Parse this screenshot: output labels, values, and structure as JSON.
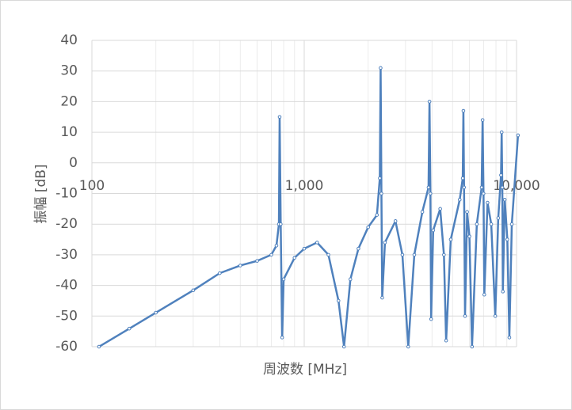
{
  "chart_data": {
    "type": "line",
    "x_label": "周波数 [MHz]",
    "y_label": "振幅 [dB]",
    "x": [
      108,
      150,
      200,
      300,
      400,
      500,
      600,
      700,
      740,
      760,
      766,
      775,
      787,
      800,
      900,
      1000,
      1150,
      1300,
      1450,
      1540,
      1650,
      1800,
      2000,
      2200,
      2270,
      2290,
      2310,
      2330,
      2400,
      2690,
      2900,
      3090,
      3300,
      3600,
      3850,
      3890,
      3930,
      3960,
      4050,
      4370,
      4550,
      4660,
      4900,
      5400,
      5580,
      5620,
      5660,
      5720,
      5850,
      6000,
      6170,
      6500,
      6850,
      6920,
      6990,
      7050,
      7300,
      7600,
      7940,
      8200,
      8450,
      8510,
      8570,
      8620,
      8800,
      9050,
      9250,
      9500,
      10160
    ],
    "values": [
      -60,
      -54.1,
      -48.9,
      -41.6,
      -36,
      -33.5,
      -32,
      -30,
      -27,
      -20,
      15,
      -20,
      -57,
      -38,
      -31,
      -28,
      -26,
      -30,
      -45,
      -60,
      -38,
      -28,
      -21,
      -17,
      -5,
      31,
      -10,
      -44,
      -26,
      -19,
      -30,
      -60,
      -30,
      -16,
      -8,
      20,
      -10,
      -51,
      -22,
      -15,
      -30,
      -58,
      -25,
      -12,
      -5,
      17,
      -8,
      -50,
      -16,
      -24,
      -60,
      -20,
      -8,
      14,
      -10,
      -43,
      -13,
      -20,
      -50,
      -18,
      -4,
      10,
      -8,
      -42,
      -12,
      -25,
      -57,
      -20,
      9
    ],
    "color": "#4f81bd",
    "x_log": true,
    "grid": true,
    "xlim": [
      100,
      10000
    ],
    "xticks": [
      {
        "value": 100,
        "label": "100"
      },
      {
        "value": 1000,
        "label": "1,000"
      },
      {
        "value": 10000,
        "label": "10,000"
      }
    ],
    "ylim": [
      -60,
      40
    ],
    "yticks": [
      -60,
      -50,
      -40,
      -30,
      -20,
      -10,
      0,
      10,
      20,
      30,
      40
    ]
  }
}
